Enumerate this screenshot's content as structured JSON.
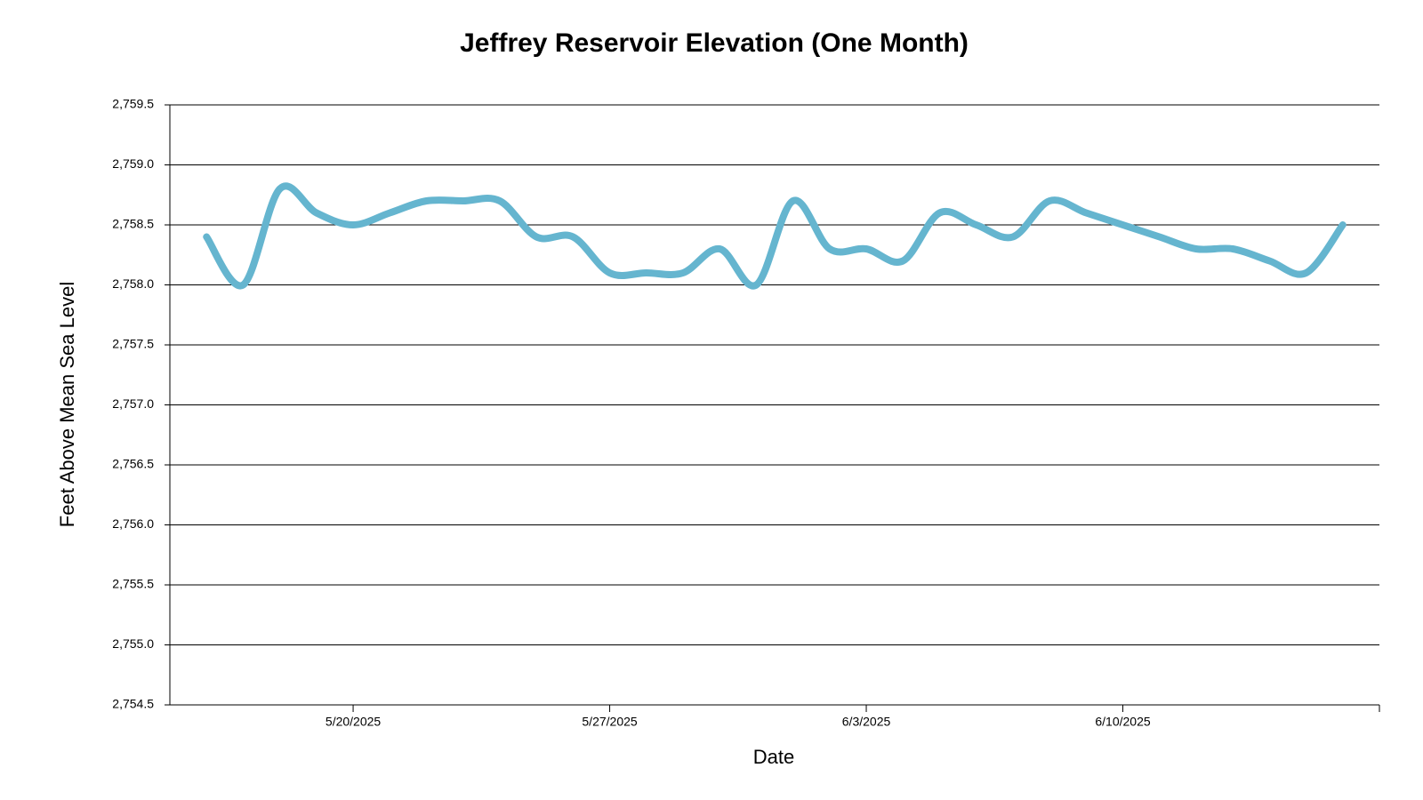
{
  "chart_data": {
    "type": "line",
    "title": "Jeffrey Reservoir Elevation (One Month)",
    "x_label": "Date",
    "y_label": "Feet Above Mean Sea Level",
    "x": [
      "2025-05-16",
      "2025-05-17",
      "2025-05-18",
      "2025-05-19",
      "2025-05-20",
      "2025-05-21",
      "2025-05-22",
      "2025-05-23",
      "2025-05-24",
      "2025-05-25",
      "2025-05-26",
      "2025-05-27",
      "2025-05-28",
      "2025-05-29",
      "2025-05-30",
      "2025-05-31",
      "2025-06-01",
      "2025-06-02",
      "2025-06-03",
      "2025-06-04",
      "2025-06-05",
      "2025-06-06",
      "2025-06-07",
      "2025-06-08",
      "2025-06-09",
      "2025-06-10",
      "2025-06-11",
      "2025-06-12",
      "2025-06-13",
      "2025-06-14",
      "2025-06-15",
      "2025-06-16"
    ],
    "values": [
      2758.4,
      2758.0,
      2758.8,
      2758.6,
      2758.5,
      2758.6,
      2758.7,
      2758.7,
      2758.7,
      2758.4,
      2758.4,
      2758.1,
      2758.1,
      2758.1,
      2758.3,
      2758.0,
      2758.7,
      2758.3,
      2758.3,
      2758.2,
      2758.6,
      2758.5,
      2758.4,
      2758.7,
      2758.6,
      2758.5,
      2758.4,
      2758.3,
      2758.3,
      2758.2,
      2758.1,
      2758.5
    ],
    "color": "#65b5cf",
    "xlim": [
      "2025-05-15",
      "2025-06-17"
    ],
    "xticks": [
      {
        "value": "2025-05-20",
        "label": "5/20/2025"
      },
      {
        "value": "2025-05-27",
        "label": "5/27/2025"
      },
      {
        "value": "2025-06-03",
        "label": "6/3/2025"
      },
      {
        "value": "2025-06-10",
        "label": "6/10/2025"
      }
    ],
    "ylim": [
      2754.5,
      2759.5
    ],
    "yticks": [
      {
        "value": 2754.5,
        "label": "2,754.5"
      },
      {
        "value": 2755.0,
        "label": "2,755.0"
      },
      {
        "value": 2755.5,
        "label": "2,755.5"
      },
      {
        "value": 2756.0,
        "label": "2,756.0"
      },
      {
        "value": 2756.5,
        "label": "2,756.5"
      },
      {
        "value": 2757.0,
        "label": "2,757.0"
      },
      {
        "value": 2757.5,
        "label": "2,757.5"
      },
      {
        "value": 2758.0,
        "label": "2,758.0"
      },
      {
        "value": 2758.5,
        "label": "2,758.5"
      },
      {
        "value": 2759.0,
        "label": "2,759.0"
      },
      {
        "value": 2759.5,
        "label": "2,759.5"
      }
    ],
    "grid": true
  }
}
